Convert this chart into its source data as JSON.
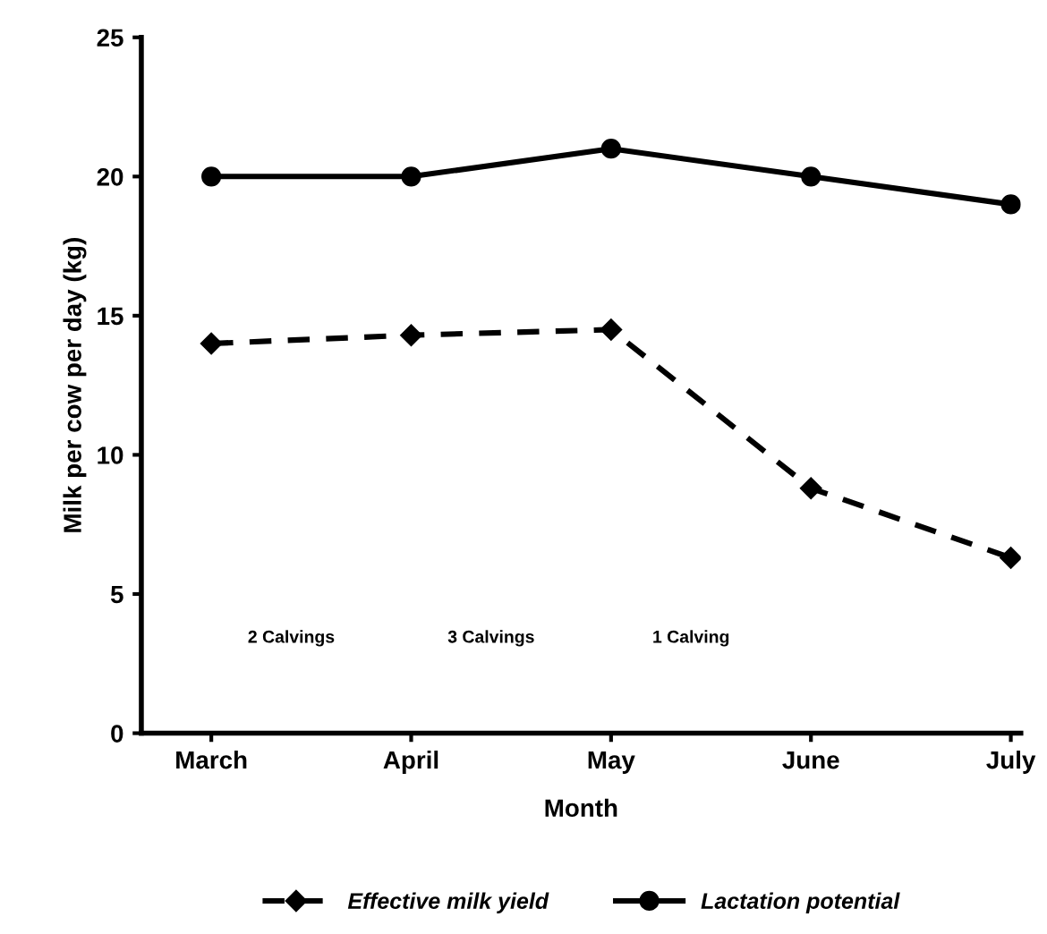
{
  "chart_data": {
    "type": "line",
    "xlabel": "Month",
    "ylabel": "Milk per cow per day (kg)",
    "categories": [
      "March",
      "April",
      "May",
      "June",
      "July"
    ],
    "series": [
      {
        "name": "Effective milk yield",
        "color": "#000000",
        "values": [
          14.0,
          14.3,
          14.5,
          8.8,
          6.3
        ],
        "marker": "diamond",
        "line_style": "dashed"
      },
      {
        "name": "Lactation potential",
        "color": "#000000",
        "values": [
          20,
          20,
          21,
          20,
          19
        ],
        "marker": "circle",
        "line_style": "solid"
      }
    ],
    "ylim": [
      0,
      25
    ],
    "yticks": [
      0,
      5,
      10,
      15,
      20,
      25
    ],
    "grid": false,
    "legend": "bottom",
    "annotations": [
      "2 Calvings",
      "3 Calvings",
      "1 Calving"
    ]
  }
}
